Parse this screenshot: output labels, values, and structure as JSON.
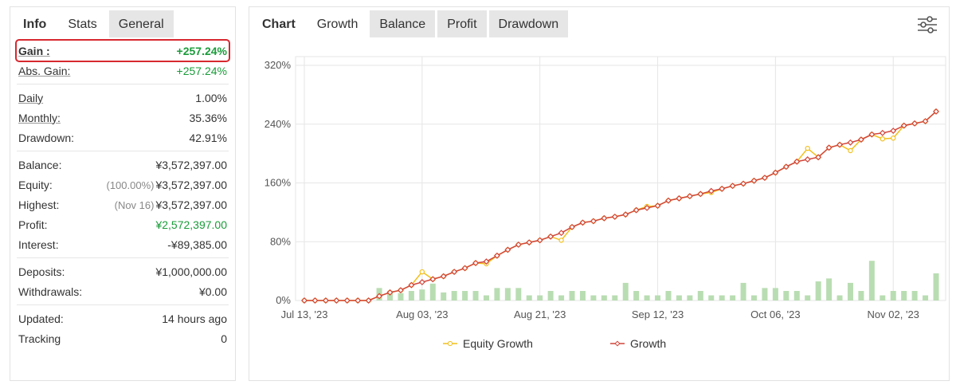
{
  "info": {
    "heading": "Info",
    "tabs": [
      "Stats",
      "General"
    ],
    "active_tab": 0,
    "groups": [
      {
        "rows": [
          {
            "label": "Gain :",
            "value": "+257.24%",
            "color": "#1a9c3a",
            "underlined": true,
            "highlight": true
          },
          {
            "label": "Abs. Gain:",
            "value": "+257.24%",
            "color": "#1a9c3a",
            "underlined": true
          }
        ]
      },
      {
        "rows": [
          {
            "label": "Daily",
            "value": "1.00%",
            "underlined": true
          },
          {
            "label": "Monthly:",
            "value": "35.36%",
            "underlined": true
          },
          {
            "label": "Drawdown:",
            "value": "42.91%"
          }
        ]
      },
      {
        "rows": [
          {
            "label": "Balance:",
            "value": "¥3,572,397.00"
          },
          {
            "label": "Equity:",
            "note": "(100.00%)",
            "value": "¥3,572,397.00"
          },
          {
            "label": "Highest:",
            "note": "(Nov 16)",
            "value": "¥3,572,397.00"
          },
          {
            "label": "Profit:",
            "value": "¥2,572,397.00",
            "color": "#1a9c3a"
          },
          {
            "label": "Interest:",
            "value": "-¥89,385.00"
          }
        ]
      },
      {
        "rows": [
          {
            "label": "Deposits:",
            "value": "¥1,000,000.00"
          },
          {
            "label": "Withdrawals:",
            "value": "¥0.00"
          }
        ]
      },
      {
        "rows": [
          {
            "label": "Updated:",
            "value": "14 hours ago"
          },
          {
            "label": "Tracking",
            "value": "0"
          }
        ]
      }
    ]
  },
  "chart_panel": {
    "heading": "Chart",
    "tabs": [
      "Growth",
      "Balance",
      "Profit",
      "Drawdown"
    ],
    "active_tab": 0
  },
  "chart_data": {
    "type": "line",
    "categories": [
      "Jul 13, '23",
      null,
      null,
      null,
      null,
      null,
      null,
      null,
      null,
      null,
      null,
      "Aug 03, '23",
      null,
      null,
      null,
      null,
      null,
      null,
      null,
      null,
      null,
      null,
      "Aug 21, '23",
      null,
      null,
      null,
      null,
      null,
      null,
      null,
      null,
      null,
      null,
      "Sep 12, '23",
      null,
      null,
      null,
      null,
      null,
      null,
      null,
      null,
      null,
      null,
      "Oct 06, '23",
      null,
      null,
      null,
      null,
      null,
      null,
      null,
      null,
      null,
      null,
      "Nov 02, '23",
      null,
      null,
      null,
      null
    ],
    "series": [
      {
        "name": "Equity Growth",
        "color": "#f2c01e",
        "values": [
          0,
          0,
          0,
          0,
          0,
          0,
          0,
          6,
          11,
          14,
          21,
          39,
          29,
          33,
          39,
          44,
          51,
          50,
          61,
          69,
          76,
          79,
          82,
          87,
          82,
          100,
          106,
          108,
          112,
          114,
          117,
          123,
          128,
          129,
          136,
          139,
          142,
          145,
          147,
          152,
          156,
          159,
          163,
          167,
          174,
          182,
          189,
          207,
          195,
          208,
          212,
          204,
          219,
          226,
          220,
          221,
          238,
          241,
          244,
          257.24
        ]
      },
      {
        "name": "Growth",
        "color": "#d2453a",
        "values": [
          0,
          0,
          0,
          0,
          0,
          0,
          0,
          6,
          11,
          14,
          21,
          25,
          29,
          33,
          39,
          44,
          51,
          53,
          61,
          69,
          76,
          79,
          82,
          87,
          92,
          100,
          106,
          108,
          112,
          114,
          117,
          123,
          126,
          129,
          136,
          139,
          142,
          145,
          149,
          152,
          156,
          159,
          163,
          167,
          174,
          182,
          189,
          192,
          195,
          208,
          212,
          215,
          219,
          226,
          228,
          231,
          238,
          241,
          244,
          257.24
        ]
      }
    ],
    "bar_color": "#b9ddb2",
    "bar_values": [
      0,
      0,
      0,
      0,
      0,
      0,
      0,
      17,
      13,
      10,
      13,
      15,
      23,
      11,
      13,
      13,
      13,
      7,
      17,
      17,
      17,
      7,
      7,
      13,
      7,
      13,
      13,
      7,
      7,
      7,
      24,
      13,
      7,
      7,
      13,
      7,
      7,
      13,
      7,
      7,
      7,
      24,
      7,
      17,
      17,
      13,
      13,
      7,
      26,
      30,
      7,
      24,
      13,
      54,
      7,
      13,
      13,
      13,
      7,
      37
    ],
    "ylim": [
      0,
      320
    ],
    "yticks": [
      {
        "value": 0,
        "label": "0%"
      },
      {
        "value": 80,
        "label": "80%"
      },
      {
        "value": 160,
        "label": "160%"
      },
      {
        "value": 240,
        "label": "240%"
      },
      {
        "value": 320,
        "label": "320%"
      }
    ],
    "grid": true,
    "legend": "bottom"
  }
}
